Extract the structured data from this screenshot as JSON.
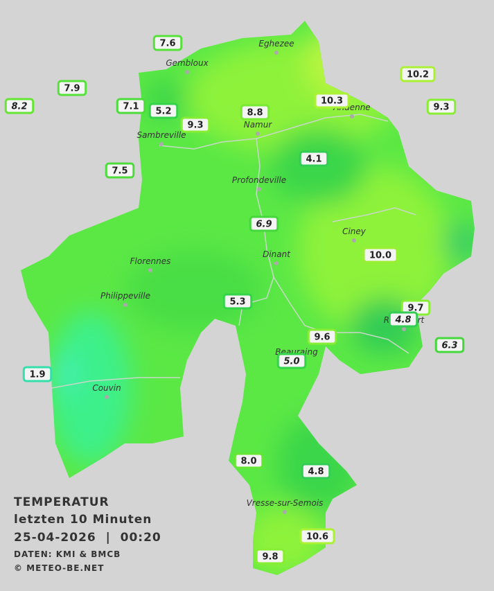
{
  "legend": {
    "title": "TEMPERATUR",
    "subtitle": "letzten 10 Minuten",
    "datetime": "25-04-2026  |  00:20",
    "source": "DATEN: KMI & BMCB",
    "copyright": "© METEO-BE.NET"
  },
  "towns": [
    "Eghezee",
    "Gembloux",
    "Andenne",
    "Namur",
    "Sambreville",
    "Profondeville",
    "Ciney",
    "Dinant",
    "Florennes",
    "Philippeville",
    "Beauraing",
    "Rochefort",
    "Couvin",
    "Vresse-sur-Semois"
  ],
  "stations": [
    {
      "label": "7.6",
      "color": "#55e03a"
    },
    {
      "label": "7.9",
      "color": "#55e03a"
    },
    {
      "label": "8.2",
      "color": "#66e633",
      "italic": true
    },
    {
      "label": "7.1",
      "color": "#4ddd3a"
    },
    {
      "label": "5.2",
      "color": "#33d44a"
    },
    {
      "label": "9.3",
      "color": "#88ee33"
    },
    {
      "label": "8.8",
      "color": "#77ea33"
    },
    {
      "label": "10.3",
      "color": "#aaf233"
    },
    {
      "label": "10.2",
      "color": "#aaf233"
    },
    {
      "label": "9.3",
      "color": "#88ee33"
    },
    {
      "label": "4.1",
      "color": "#33cc55"
    },
    {
      "label": "7.5",
      "color": "#4ddd3a"
    },
    {
      "label": "6.9",
      "color": "#44d83d",
      "italic": true
    },
    {
      "label": "10.0",
      "color": "#99f033"
    },
    {
      "label": "5.3",
      "color": "#33d44a"
    },
    {
      "label": "9.7",
      "color": "#88ee33"
    },
    {
      "label": "4.8",
      "color": "#33cc55",
      "italic": true
    },
    {
      "label": "9.6",
      "color": "#88ee33"
    },
    {
      "label": "6.3",
      "color": "#44d83d",
      "italic": true
    },
    {
      "label": "5.0",
      "color": "#33d44a",
      "italic": true
    },
    {
      "label": "1.9",
      "color": "#33e0aa"
    },
    {
      "label": "8.0",
      "color": "#66e633"
    },
    {
      "label": "4.8",
      "color": "#33cc55"
    },
    {
      "label": "10.6",
      "color": "#aaf233"
    },
    {
      "label": "9.8",
      "color": "#88ee33"
    }
  ]
}
